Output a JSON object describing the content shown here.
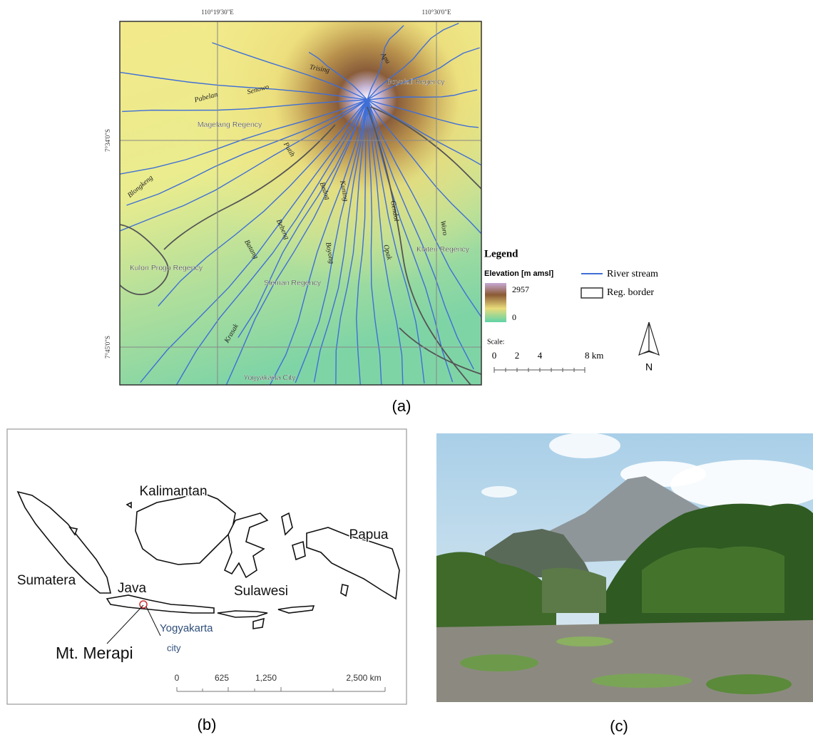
{
  "panel_a": {
    "caption": "(a)",
    "lon_labels": [
      "110°19'30\"E",
      "110°30'0\"E"
    ],
    "lat_labels": [
      "7°34'0\"S",
      "7°45'0\"S"
    ],
    "rivers": [
      "Apu",
      "Trising",
      "Senowo",
      "Pabelan",
      "Blongkeng",
      "Putih",
      "Bedog",
      "Kuning",
      "Batang",
      "Bebeng",
      "Krasak",
      "Boyong",
      "Gendol",
      "Opak",
      "Woro"
    ],
    "regions": [
      "Boyolali Regency",
      "Magelang Regency",
      "Klaten Regency",
      "Kulon Progo Regency",
      "Sleman Regency",
      "Yogyakarta City"
    ],
    "legend": {
      "title": "Legend",
      "elevation_title": "Elevation [m amsl]",
      "elevation_max": "2957",
      "elevation_min": "0",
      "river": "River stream",
      "border": "Reg. border"
    },
    "scale": {
      "title": "Scale:",
      "ticks": [
        "0",
        "2",
        "4",
        "8 km"
      ]
    },
    "north": "N"
  },
  "panel_b": {
    "caption": "(b)",
    "islands": [
      "Kalimantan",
      "Papua",
      "Sumatera",
      "Java",
      "Sulawesi"
    ],
    "city_label": [
      "Yogyakarta",
      "city"
    ],
    "volcano": "Mt. Merapi",
    "scale": [
      "0",
      "625",
      "1,250",
      "2,500 km"
    ]
  },
  "panel_c": {
    "caption": "(c)"
  }
}
